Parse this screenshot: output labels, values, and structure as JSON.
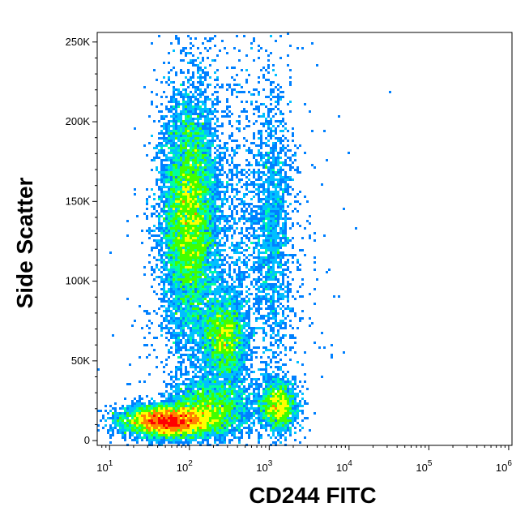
{
  "chart_data": {
    "type": "scatter",
    "title": "",
    "xlabel": "CD244 FITC",
    "ylabel": "Side Scatter",
    "x_scale": "log",
    "xlim": [
      7,
      1100000
    ],
    "ylim": [
      -3000,
      256000
    ],
    "x_ticks": [
      {
        "value": 10,
        "base": "10",
        "exp": "1"
      },
      {
        "value": 100,
        "base": "10",
        "exp": "2"
      },
      {
        "value": 1000,
        "base": "10",
        "exp": "3"
      },
      {
        "value": 10000,
        "base": "10",
        "exp": "4"
      },
      {
        "value": 100000,
        "base": "10",
        "exp": "5"
      },
      {
        "value": 1000000,
        "base": "10",
        "exp": "6"
      }
    ],
    "y_ticks": [
      {
        "value": 0,
        "label": "0"
      },
      {
        "value": 50000,
        "label": "50K"
      },
      {
        "value": 100000,
        "label": "100K"
      },
      {
        "value": 150000,
        "label": "150K"
      },
      {
        "value": 200000,
        "label": "200K"
      },
      {
        "value": 250000,
        "label": "250K"
      }
    ],
    "grid": false,
    "density_colors": [
      "#0000ff",
      "#0080ff",
      "#00c0ff",
      "#00ffa0",
      "#40ff00",
      "#ffff00",
      "#ff8000",
      "#ff0000"
    ],
    "populations": [
      {
        "cx": 100,
        "cy": 140000,
        "sx_log": 0.17,
        "sy": 38000,
        "weight": 0.34
      },
      {
        "cx": 55,
        "cy": 12000,
        "sx_log": 0.28,
        "sy": 5000,
        "weight": 0.24
      },
      {
        "cx": 270,
        "cy": 65000,
        "sx_log": 0.14,
        "sy": 14000,
        "weight": 0.1
      },
      {
        "cx": 180,
        "cy": 20000,
        "sx_log": 0.25,
        "sy": 9000,
        "weight": 0.1
      },
      {
        "cx": 1300,
        "cy": 22000,
        "sx_log": 0.12,
        "sy": 8000,
        "weight": 0.07
      },
      {
        "cx": 1100,
        "cy": 135000,
        "sx_log": 0.12,
        "sy": 40000,
        "weight": 0.05
      },
      {
        "cx": 350,
        "cy": 110000,
        "sx_log": 0.45,
        "sy": 70000,
        "weight": 0.1
      }
    ]
  }
}
